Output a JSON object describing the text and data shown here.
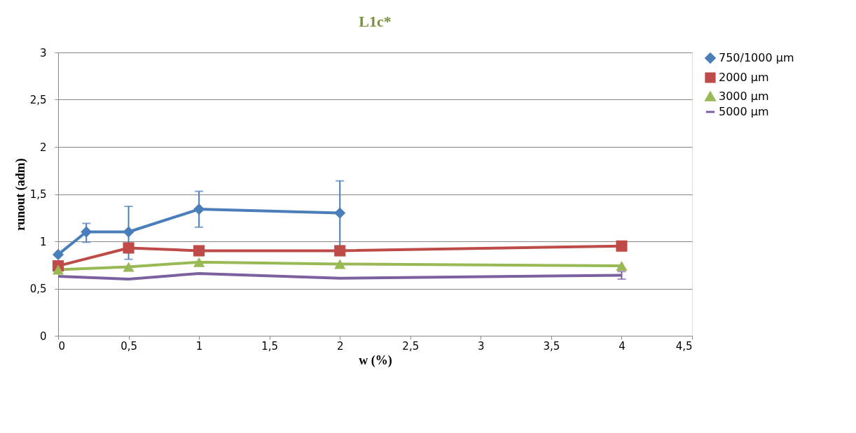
{
  "chart_data": {
    "type": "line",
    "title": "L1c*",
    "xlabel": "w (%)",
    "ylabel": "runout (adm)",
    "xlim": [
      0,
      4.5
    ],
    "ylim": [
      0,
      3
    ],
    "xticks": [
      0,
      {
        "value": 0.5,
        "label": "0,5"
      },
      1,
      {
        "value": 1.5,
        "label": "1,5"
      },
      2,
      {
        "value": 2.5,
        "label": "2,5"
      },
      3,
      {
        "value": 3.5,
        "label": "3,5"
      },
      4,
      {
        "value": 4.5,
        "label": "4,5"
      }
    ],
    "yticks": [
      0,
      {
        "value": 0.5,
        "label": "0,5"
      },
      1,
      {
        "value": 1.5,
        "label": "1,5"
      },
      2,
      {
        "value": 2.5,
        "label": "2,5"
      },
      3
    ],
    "grid": "y",
    "legend": "right",
    "line_style": "solid",
    "series": [
      {
        "name": "750/1000 µm",
        "color": "#4a7ebb",
        "marker": "diamond",
        "x": [
          0,
          0.2,
          0.5,
          1,
          2
        ],
        "values": [
          0.86,
          1.1,
          1.1,
          1.34,
          1.3
        ],
        "errors": [
          null,
          [
            0.99,
            1.19
          ],
          [
            0.81,
            1.37
          ],
          [
            1.15,
            1.53
          ],
          [
            0.95,
            1.64
          ]
        ]
      },
      {
        "name": "2000 µm",
        "color": "#be4b48",
        "marker": "square",
        "x": [
          0,
          0.5,
          1,
          2,
          4
        ],
        "values": [
          0.74,
          0.93,
          0.9,
          0.9,
          0.95
        ]
      },
      {
        "name": "3000 µm",
        "color": "#98b954",
        "marker": "triangle",
        "x": [
          0,
          0.5,
          1,
          2,
          4
        ],
        "values": [
          0.7,
          0.73,
          0.78,
          0.76,
          0.74
        ]
      },
      {
        "name": "5000 µm",
        "color": "#7d60a0",
        "marker": "none",
        "x": [
          0,
          0.5,
          1,
          2,
          4
        ],
        "values": [
          0.63,
          0.6,
          0.66,
          0.61,
          0.64
        ],
        "errors": [
          null,
          null,
          null,
          null,
          0.04
        ]
      }
    ]
  }
}
